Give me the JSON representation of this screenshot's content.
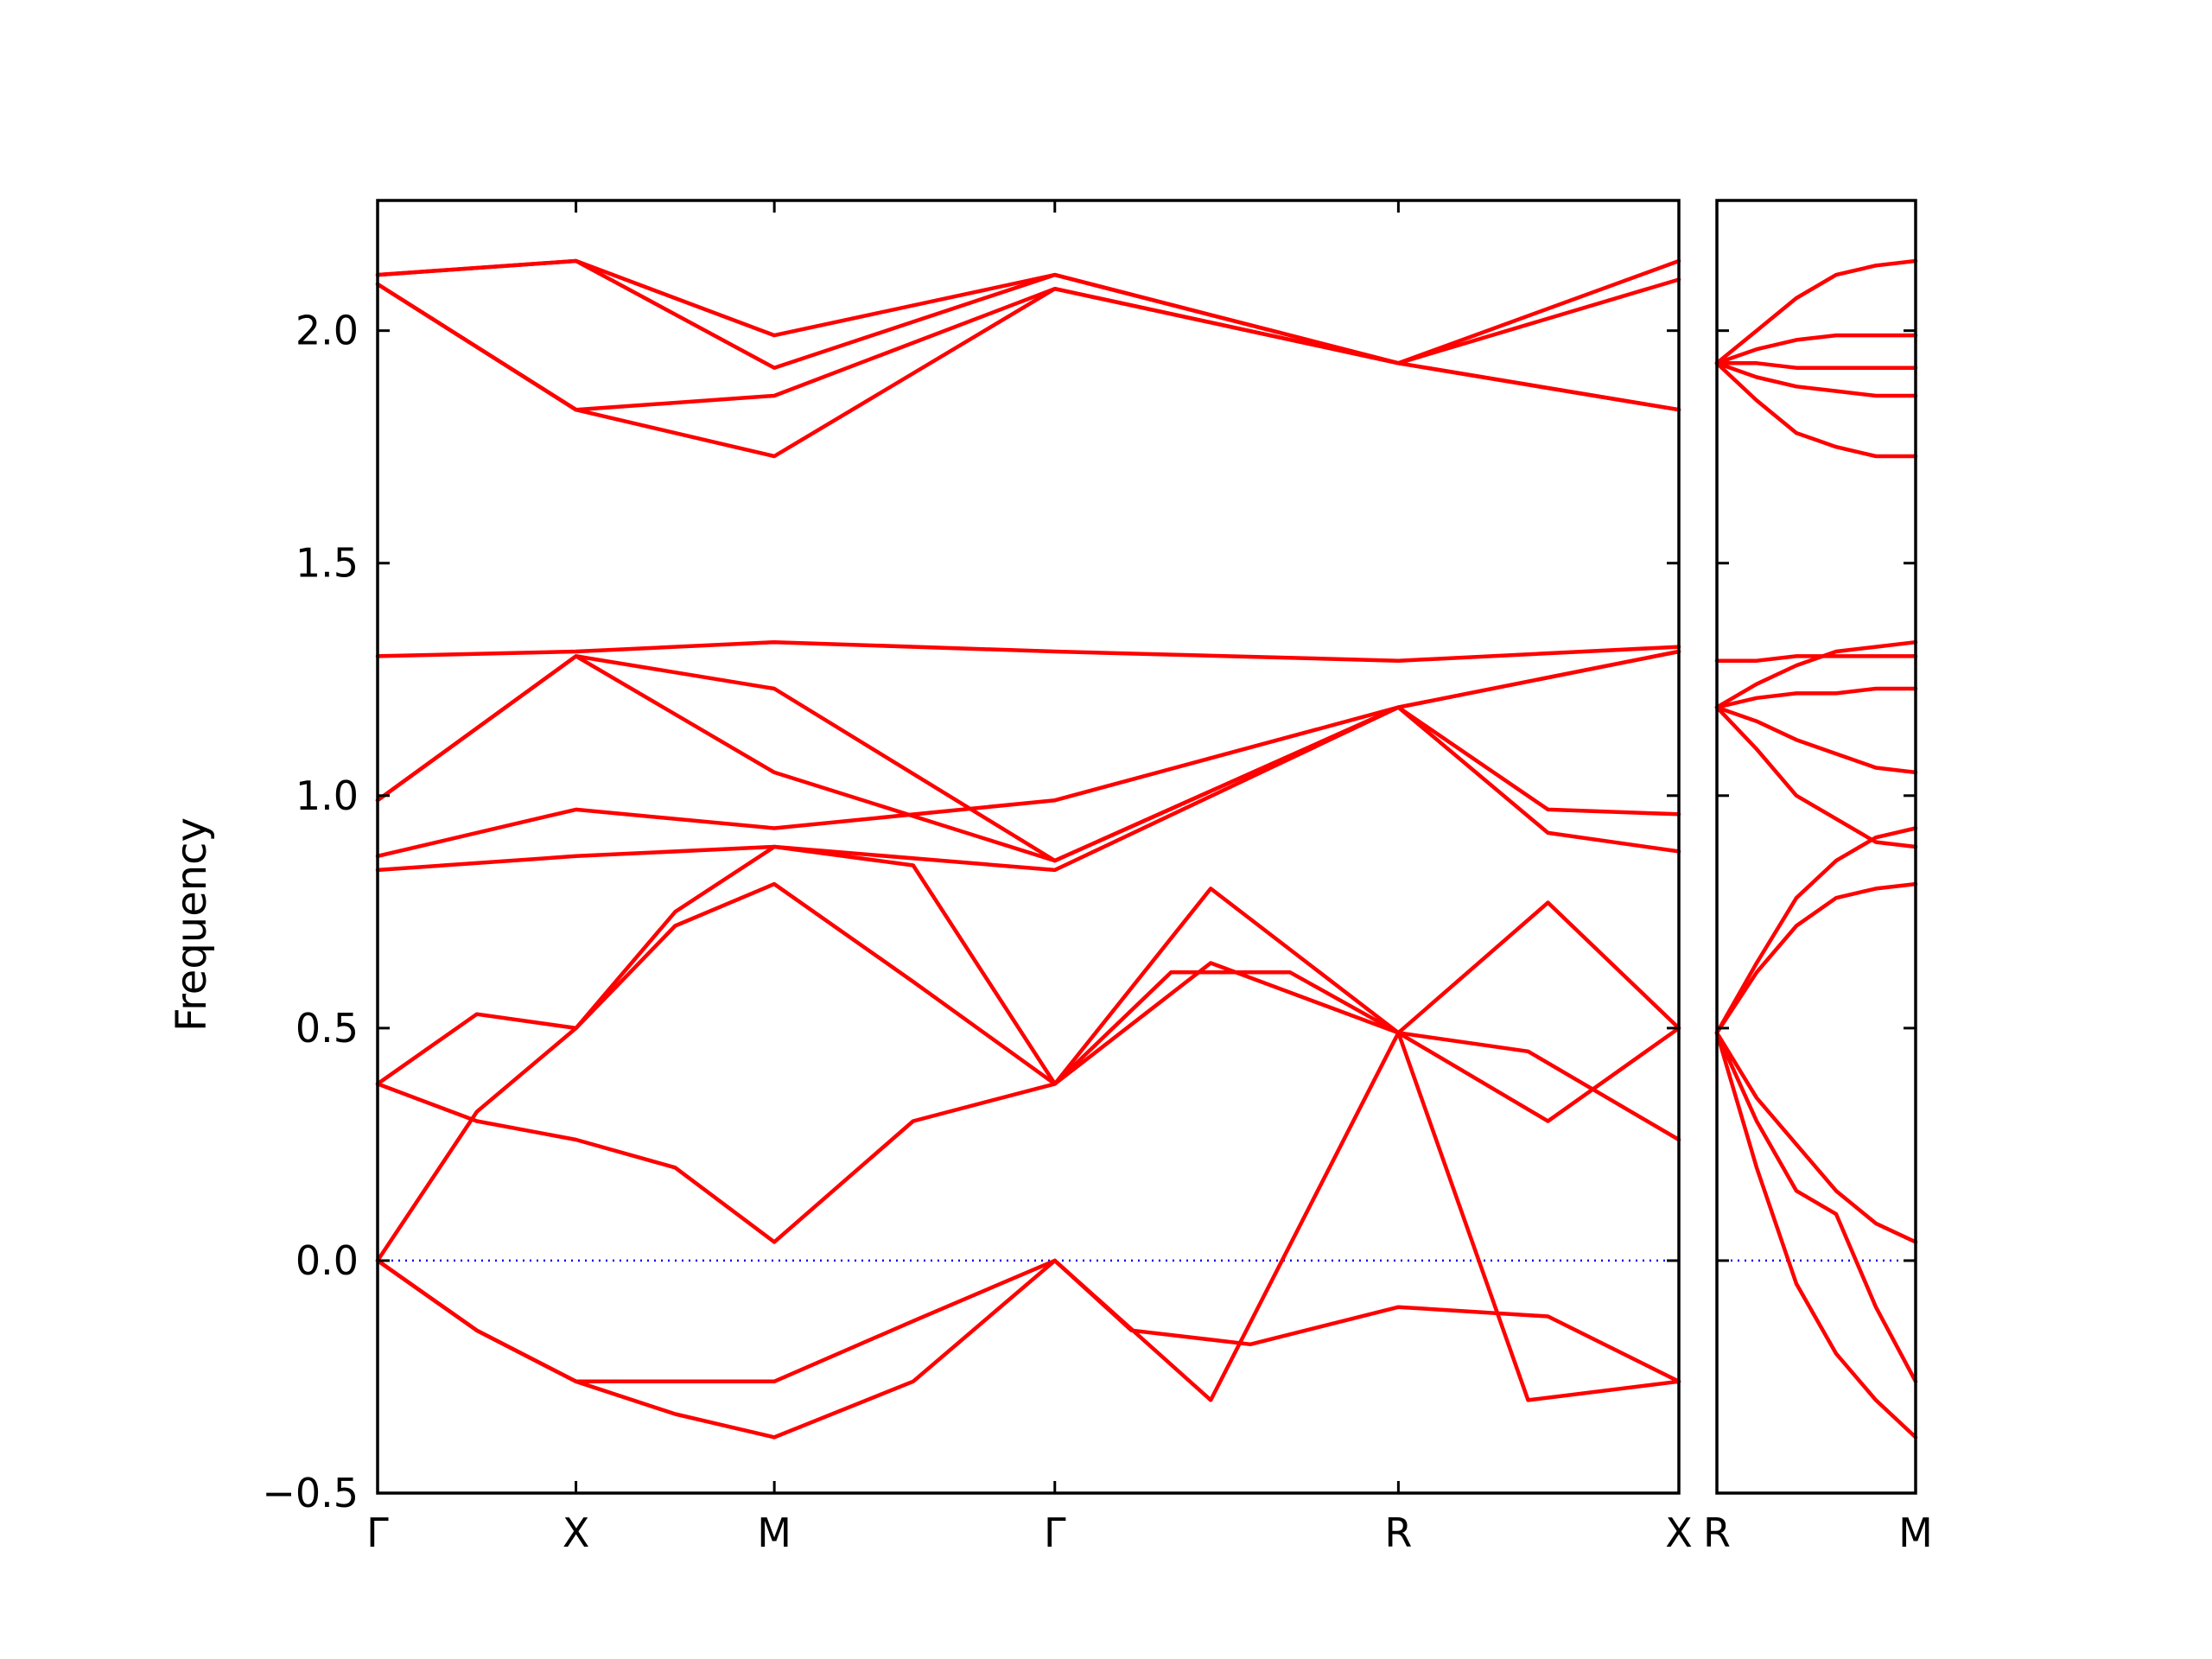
{
  "chart_data": {
    "type": "line",
    "ylabel": "Frequency",
    "ylim": [
      -0.5,
      2.28
    ],
    "yticks": [
      -0.5,
      0.0,
      0.5,
      1.0,
      1.5,
      2.0
    ],
    "ytick_labels": [
      "−0.5",
      "0.0",
      "0.5",
      "1.0",
      "1.5",
      "2.0"
    ],
    "grid": false,
    "line_color": "#ff0000",
    "zero_line_color": "#0000ff",
    "panels": [
      {
        "path": "Γ-X-M-Γ-R-X",
        "qpoints": [
          {
            "label": "Γ",
            "x": 0.0
          },
          {
            "label": "X",
            "x": 0.5
          },
          {
            "label": "M",
            "x": 1.0
          },
          {
            "label": "Γ",
            "x": 1.707
          },
          {
            "label": "R",
            "x": 2.573
          },
          {
            "label": "X",
            "x": 3.28
          }
        ],
        "series": [
          {
            "x": [
              0,
              0.25,
              0.5,
              0.75,
              1.0,
              1.35,
              1.707,
              1.9,
              2.2,
              2.573,
              2.95,
              3.28
            ],
            "y": [
              0.0,
              -0.15,
              -0.26,
              -0.26,
              -0.26,
              -0.13,
              0.0,
              -0.15,
              -0.18,
              -0.1,
              -0.12,
              -0.26
            ]
          },
          {
            "x": [
              0,
              0.25,
              0.5,
              0.75,
              1.0,
              1.35,
              1.707,
              2.1,
              2.573,
              2.9,
              3.28
            ],
            "y": [
              0.0,
              -0.15,
              -0.26,
              -0.33,
              -0.38,
              -0.26,
              0.0,
              -0.3,
              0.49,
              -0.3,
              -0.26
            ]
          },
          {
            "x": [
              0,
              0.25,
              0.5,
              0.75,
              1.0,
              1.35,
              1.707,
              2.0,
              2.3,
              2.573,
              2.9,
              3.28
            ],
            "y": [
              0.0,
              0.32,
              0.5,
              0.75,
              0.89,
              0.85,
              0.38,
              0.62,
              0.62,
              0.49,
              0.45,
              0.26
            ]
          },
          {
            "x": [
              0,
              0.25,
              0.5,
              0.75,
              1.0,
              1.35,
              1.707,
              2.1,
              2.573,
              2.95,
              3.28
            ],
            "y": [
              0.38,
              0.3,
              0.26,
              0.2,
              0.04,
              0.3,
              0.38,
              0.64,
              0.49,
              0.3,
              0.5
            ]
          },
          {
            "x": [
              0,
              0.25,
              0.5,
              0.75,
              1.0,
              1.35,
              1.707,
              2.1,
              2.573,
              2.95,
              3.28
            ],
            "y": [
              0.38,
              0.53,
              0.5,
              0.72,
              0.81,
              0.6,
              0.38,
              0.8,
              0.49,
              0.77,
              0.5
            ]
          },
          {
            "x": [
              0,
              0.5,
              1.0,
              1.707,
              2.573,
              2.95,
              3.28
            ],
            "y": [
              0.84,
              0.87,
              0.89,
              0.84,
              1.19,
              0.97,
              0.96
            ]
          },
          {
            "x": [
              0,
              0.5,
              1.0,
              1.707,
              2.573,
              2.95,
              3.28
            ],
            "y": [
              0.87,
              0.97,
              0.93,
              0.99,
              1.19,
              0.92,
              0.88
            ]
          },
          {
            "x": [
              0,
              0.5,
              1.0,
              1.707,
              2.573,
              3.28
            ],
            "y": [
              0.99,
              1.3,
              1.05,
              0.86,
              1.19,
              1.31
            ]
          },
          {
            "x": [
              0,
              0.5,
              1.0,
              1.707,
              2.573,
              3.28
            ],
            "y": [
              0.99,
              1.3,
              1.23,
              0.86,
              1.19,
              1.31
            ]
          },
          {
            "x": [
              0,
              0.5,
              1.0,
              1.707,
              2.573,
              3.28
            ],
            "y": [
              1.3,
              1.31,
              1.33,
              1.31,
              1.29,
              1.32
            ]
          },
          {
            "x": [
              0,
              0.5,
              1.0,
              1.707,
              2.573,
              3.28
            ],
            "y": [
              2.1,
              1.83,
              1.73,
              2.09,
              1.93,
              1.83
            ]
          },
          {
            "x": [
              0,
              0.5,
              1.0,
              1.707,
              2.573,
              3.28
            ],
            "y": [
              2.1,
              1.83,
              1.86,
              2.09,
              1.93,
              1.83
            ]
          },
          {
            "x": [
              0,
              0.5,
              1.0,
              1.707,
              2.573,
              3.28
            ],
            "y": [
              2.12,
              2.15,
              1.92,
              2.12,
              1.93,
              2.11
            ]
          },
          {
            "x": [
              0,
              0.5,
              1.0,
              1.707,
              2.573,
              3.28
            ],
            "y": [
              2.12,
              2.15,
              1.99,
              2.12,
              1.93,
              2.15
            ]
          }
        ]
      },
      {
        "path": "R-M",
        "qpoints": [
          {
            "label": "R",
            "x": 0.0
          },
          {
            "label": "M",
            "x": 0.5
          }
        ],
        "series": [
          {
            "x": [
              0,
              0.1,
              0.2,
              0.3,
              0.4,
              0.5
            ],
            "y": [
              0.49,
              0.2,
              -0.05,
              -0.2,
              -0.3,
              -0.38
            ]
          },
          {
            "x": [
              0,
              0.1,
              0.2,
              0.3,
              0.4,
              0.5
            ],
            "y": [
              0.49,
              0.3,
              0.15,
              0.1,
              -0.1,
              -0.26
            ]
          },
          {
            "x": [
              0,
              0.1,
              0.2,
              0.3,
              0.4,
              0.5
            ],
            "y": [
              0.49,
              0.35,
              0.25,
              0.15,
              0.08,
              0.04
            ]
          },
          {
            "x": [
              0,
              0.1,
              0.2,
              0.3,
              0.4,
              0.5
            ],
            "y": [
              0.49,
              0.62,
              0.72,
              0.78,
              0.8,
              0.81
            ]
          },
          {
            "x": [
              0,
              0.1,
              0.2,
              0.3,
              0.4,
              0.5
            ],
            "y": [
              0.49,
              0.64,
              0.78,
              0.86,
              0.91,
              0.93
            ]
          },
          {
            "x": [
              0,
              0.1,
              0.2,
              0.3,
              0.4,
              0.5
            ],
            "y": [
              1.19,
              1.1,
              1.0,
              0.95,
              0.9,
              0.89
            ]
          },
          {
            "x": [
              0,
              0.1,
              0.2,
              0.3,
              0.4,
              0.5
            ],
            "y": [
              1.19,
              1.16,
              1.12,
              1.09,
              1.06,
              1.05
            ]
          },
          {
            "x": [
              0,
              0.1,
              0.2,
              0.3,
              0.4,
              0.5
            ],
            "y": [
              1.19,
              1.21,
              1.22,
              1.22,
              1.23,
              1.23
            ]
          },
          {
            "x": [
              0,
              0.1,
              0.2,
              0.3,
              0.4,
              0.5
            ],
            "y": [
              1.29,
              1.29,
              1.3,
              1.3,
              1.3,
              1.3
            ]
          },
          {
            "x": [
              0,
              0.1,
              0.2,
              0.3,
              0.4,
              0.5
            ],
            "y": [
              1.19,
              1.24,
              1.28,
              1.31,
              1.32,
              1.33
            ]
          },
          {
            "x": [
              0,
              0.1,
              0.2,
              0.3,
              0.4,
              0.5
            ],
            "y": [
              1.93,
              1.85,
              1.78,
              1.75,
              1.73,
              1.73
            ]
          },
          {
            "x": [
              0,
              0.1,
              0.2,
              0.3,
              0.4,
              0.5
            ],
            "y": [
              1.93,
              1.9,
              1.88,
              1.87,
              1.86,
              1.86
            ]
          },
          {
            "x": [
              0,
              0.1,
              0.2,
              0.3,
              0.4,
              0.5
            ],
            "y": [
              1.93,
              1.93,
              1.92,
              1.92,
              1.92,
              1.92
            ]
          },
          {
            "x": [
              0,
              0.1,
              0.2,
              0.3,
              0.4,
              0.5
            ],
            "y": [
              1.93,
              1.96,
              1.98,
              1.99,
              1.99,
              1.99
            ]
          },
          {
            "x": [
              0,
              0.1,
              0.2,
              0.3,
              0.4,
              0.5
            ],
            "y": [
              1.93,
              2.0,
              2.07,
              2.12,
              2.14,
              2.15
            ]
          }
        ]
      }
    ]
  }
}
